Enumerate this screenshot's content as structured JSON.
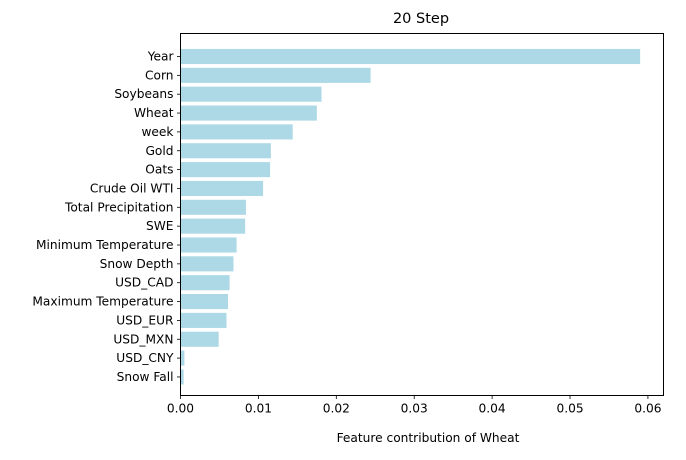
{
  "chart_data": {
    "type": "bar",
    "orientation": "horizontal",
    "title": "20 Step",
    "xlabel": "Feature contribution of Wheat",
    "ylabel": "",
    "xlim": [
      0.0,
      0.062
    ],
    "xticks": [
      "0.00",
      "0.01",
      "0.02",
      "0.03",
      "0.04",
      "0.05",
      "0.06"
    ],
    "grid": false,
    "bar_color": "#add8e6",
    "categories": [
      "Year",
      "Corn",
      "Soybeans",
      "Wheat",
      "week",
      "Gold",
      "Oats",
      "Crude Oil WTI",
      "Total Precipitation",
      "SWE",
      "Minimum Temperature",
      "Snow Depth",
      "USD_CAD",
      "Maximum Temperature",
      "USD_EUR",
      "USD_MXN",
      "USD_CNY",
      "Snow Fall"
    ],
    "values": [
      0.059,
      0.0244,
      0.0181,
      0.0175,
      0.0144,
      0.0116,
      0.0115,
      0.0106,
      0.0084,
      0.0083,
      0.0072,
      0.0068,
      0.0063,
      0.0061,
      0.0059,
      0.0049,
      0.0005,
      0.0004
    ]
  }
}
